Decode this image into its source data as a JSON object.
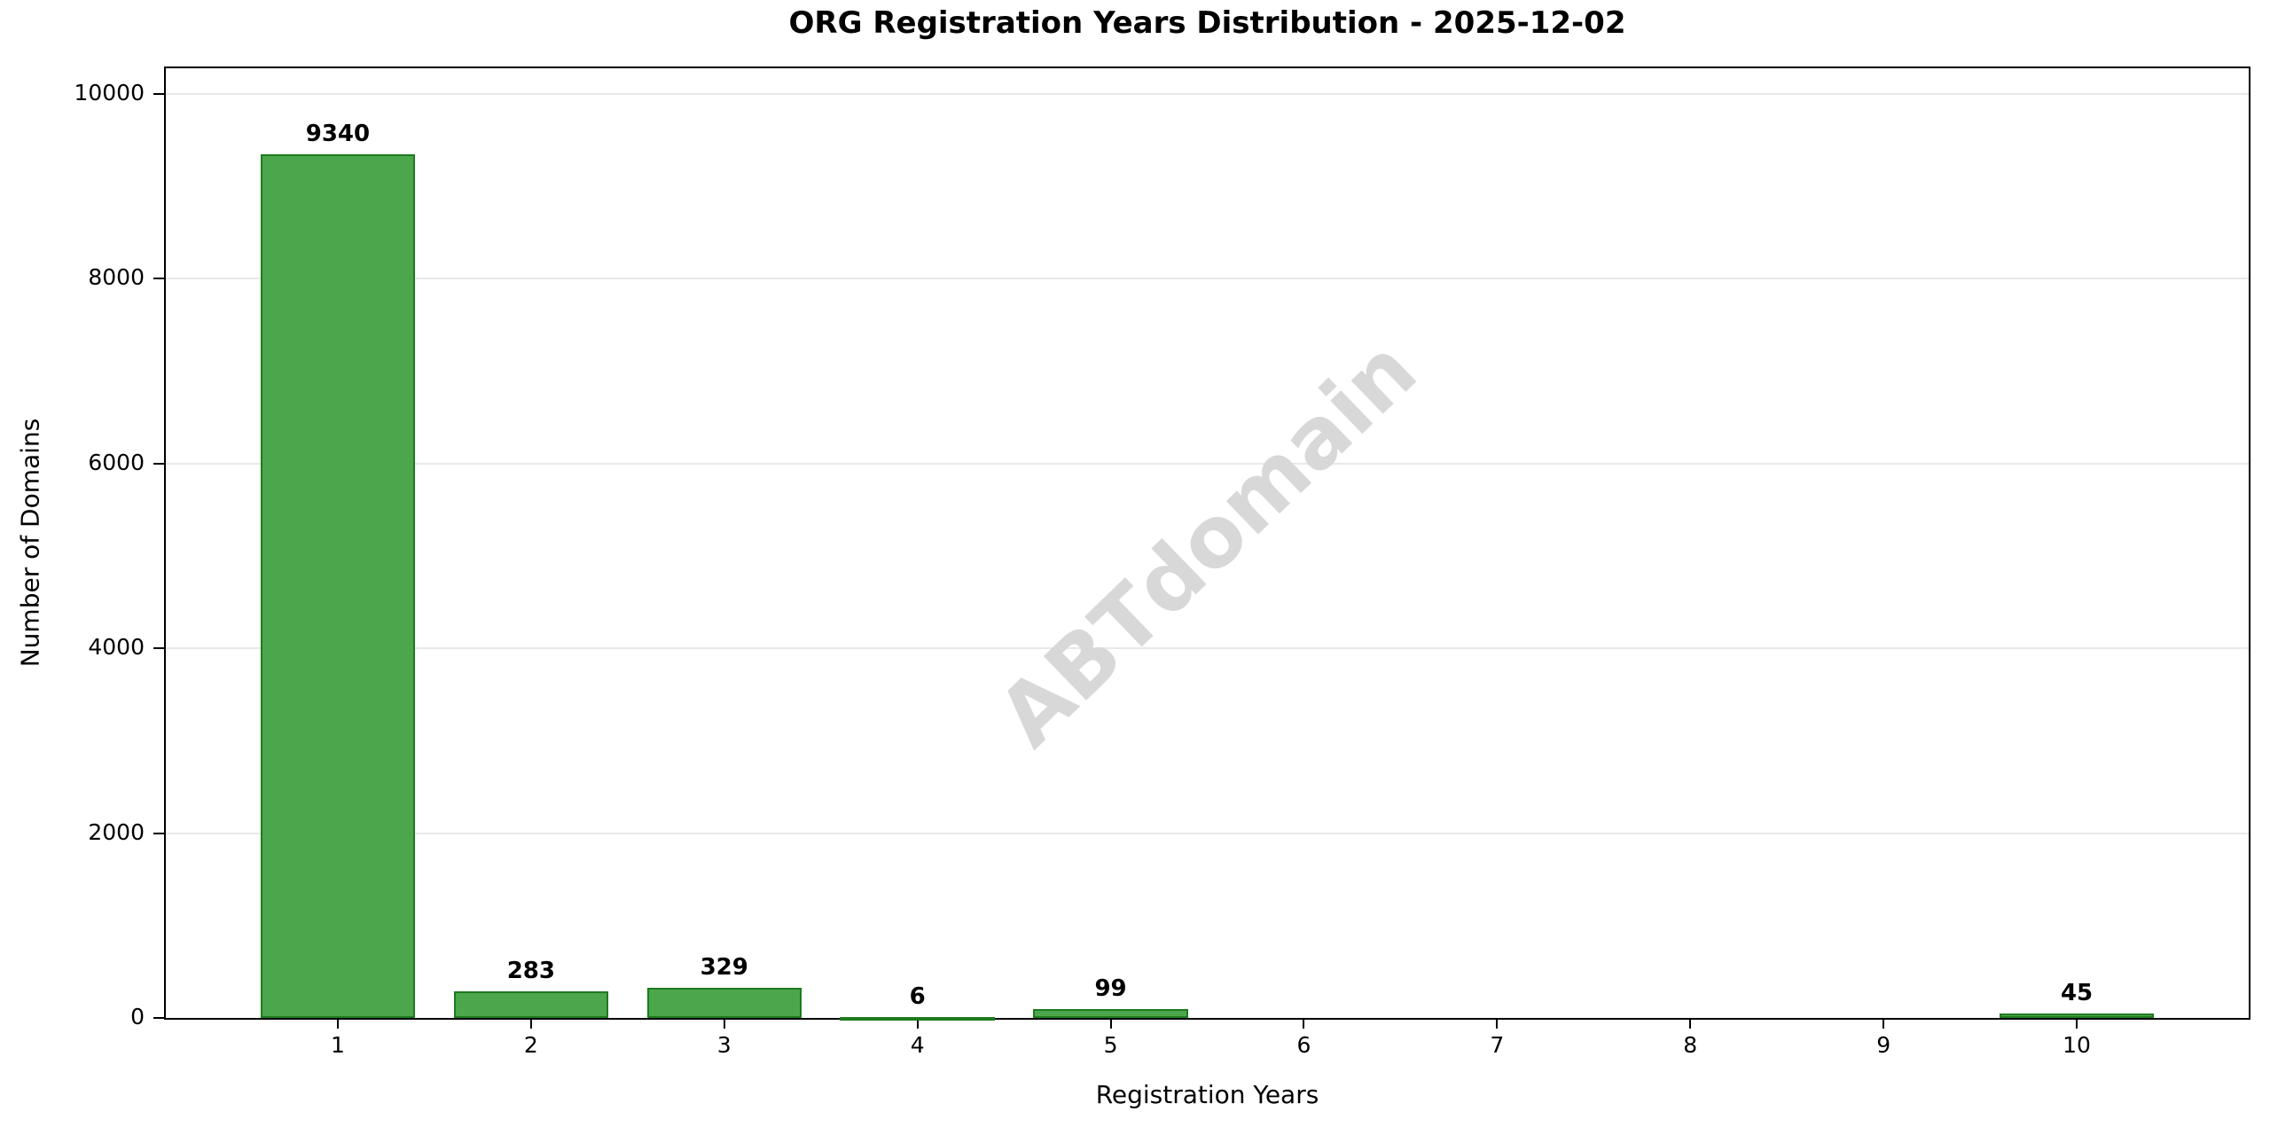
{
  "figure": {
    "background": "#ffffff"
  },
  "watermark": {
    "text": "ABTdomain",
    "color": "#d8d8d8",
    "rotation_deg": -44
  },
  "chart_data": {
    "type": "bar",
    "title": "ORG Registration Years Distribution - 2025-12-02",
    "xlabel": "Registration Years",
    "ylabel": "Number of Domains",
    "categories": [
      1,
      2,
      3,
      4,
      5,
      6,
      7,
      8,
      9,
      10
    ],
    "values": [
      9340,
      283,
      329,
      6,
      99,
      0,
      0,
      0,
      0,
      45
    ],
    "bar_labels": [
      "9340",
      "283",
      "329",
      "6",
      "99",
      "",
      "",
      "",
      "",
      "45"
    ],
    "yticks": [
      0,
      2000,
      4000,
      6000,
      8000,
      10000
    ],
    "ylim": [
      0,
      10274
    ],
    "xlim": [
      0.11,
      10.89
    ],
    "bar_width": 0.8,
    "grid": "horizontal-only",
    "legend_position": "none",
    "bar_color": "#4ca64c",
    "bar_edge_color": "#1e7b1e",
    "grid_color": "#e8e8e8"
  }
}
